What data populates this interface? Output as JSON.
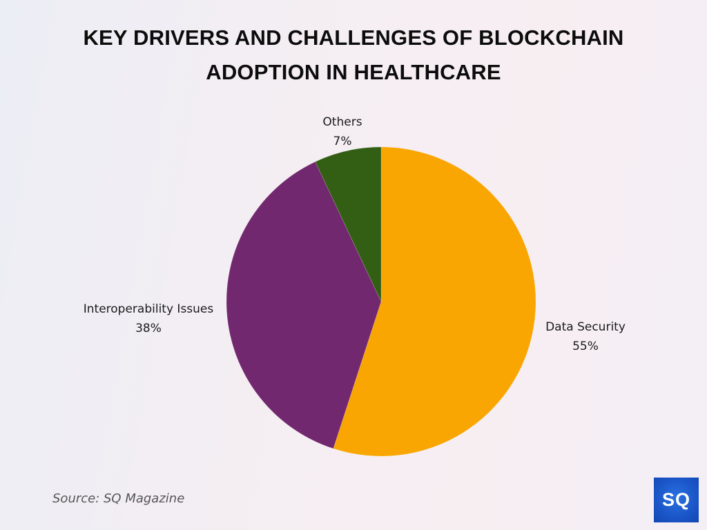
{
  "chart_data": {
    "type": "pie",
    "title": "KEY DRIVERS AND CHALLENGES OF BLOCKCHAIN ADOPTION IN HEALTHCARE",
    "title_lines": [
      "KEY DRIVERS AND CHALLENGES OF BLOCKCHAIN",
      "ADOPTION IN HEALTHCARE"
    ],
    "start": "top",
    "direction": "clockwise",
    "slices": [
      {
        "label": "Data Security",
        "value": 55,
        "display": "55%",
        "color": "#f9a602"
      },
      {
        "label": "Interoperability Issues",
        "value": 38,
        "display": "38%",
        "color": "#72286e"
      },
      {
        "label": "Others",
        "value": 7,
        "display": "7%",
        "color": "#335f14"
      }
    ],
    "legend": "none"
  },
  "footer": {
    "source": "Source: SQ Magazine",
    "logo_text": "SQ",
    "logo_color": "#1a55c8"
  }
}
